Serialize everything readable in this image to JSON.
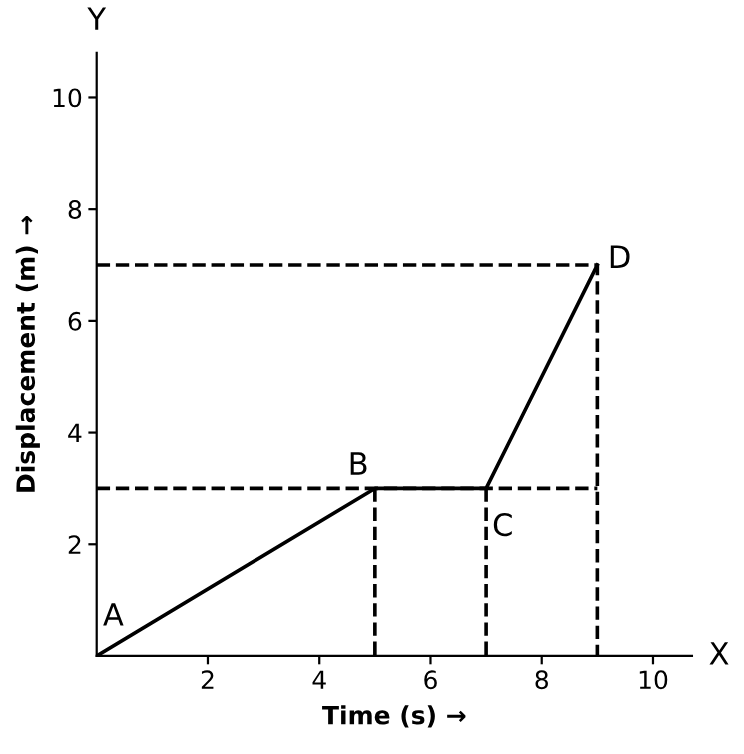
{
  "chart_data": {
    "type": "line",
    "xlabel": "Time (s) →",
    "ylabel": "Displacement (m) →",
    "xlim": [
      0,
      10.7
    ],
    "ylim": [
      0,
      10.8
    ],
    "xticks": [
      2,
      4,
      6,
      8,
      10
    ],
    "yticks": [
      2,
      4,
      6,
      8,
      10
    ],
    "grid": false,
    "legend": false,
    "marker": "none",
    "series": [
      {
        "color": "#000000",
        "line_style": "solid",
        "x": [
          0,
          5,
          7,
          9
        ],
        "values": [
          0,
          3,
          3,
          7
        ]
      },
      {
        "color": "#000000",
        "line_style": "dashed",
        "x": [
          0,
          9
        ],
        "values": [
          3,
          3
        ]
      },
      {
        "color": "#000000",
        "line_style": "dashed",
        "x": [
          0,
          9,
          9
        ],
        "values": [
          7,
          7,
          0
        ]
      },
      {
        "color": "#000000",
        "line_style": "dashed",
        "x": [
          5,
          5
        ],
        "values": [
          3,
          0
        ]
      },
      {
        "color": "#000000",
        "line_style": "dashed",
        "x": [
          7,
          7
        ],
        "values": [
          3,
          0
        ]
      }
    ],
    "annotations": [
      {
        "text": "A",
        "x": 0,
        "y": 0
      },
      {
        "text": "B",
        "x": 5,
        "y": 3
      },
      {
        "text": "C",
        "x": 7,
        "y": 3
      },
      {
        "text": "D",
        "x": 9,
        "y": 7
      },
      "X",
      "Y"
    ]
  }
}
